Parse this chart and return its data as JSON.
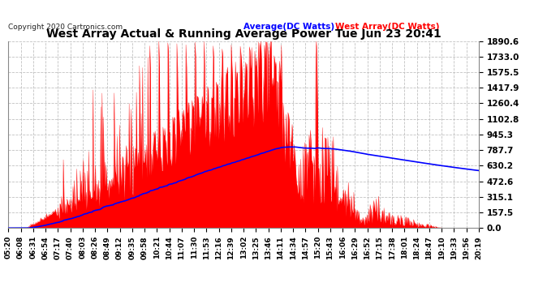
{
  "title": "West Array Actual & Running Average Power Tue Jun 23 20:41",
  "copyright": "Copyright 2020 Cartronics.com",
  "legend_avg": "Average(DC Watts)",
  "legend_west": "West Array(DC Watts)",
  "ymin": 0.0,
  "ymax": 1890.6,
  "yticks": [
    0.0,
    157.5,
    315.1,
    472.6,
    630.2,
    787.7,
    945.3,
    1102.8,
    1260.4,
    1417.9,
    1575.5,
    1733.0,
    1890.6
  ],
  "bg_color": "#ffffff",
  "grid_color": "#bbbbbb",
  "bar_color": "#ff0000",
  "avg_color": "#0000ff",
  "title_color": "#000000",
  "x_labels": [
    "05:20",
    "06:08",
    "06:31",
    "06:54",
    "07:17",
    "07:40",
    "08:03",
    "08:26",
    "08:49",
    "09:12",
    "09:35",
    "09:58",
    "10:21",
    "10:44",
    "11:07",
    "11:30",
    "11:53",
    "12:16",
    "12:39",
    "13:02",
    "13:25",
    "13:46",
    "14:11",
    "14:34",
    "14:57",
    "15:20",
    "15:43",
    "16:06",
    "16:29",
    "16:52",
    "17:15",
    "17:38",
    "18:01",
    "18:24",
    "18:47",
    "19:10",
    "19:33",
    "19:56",
    "20:19"
  ]
}
